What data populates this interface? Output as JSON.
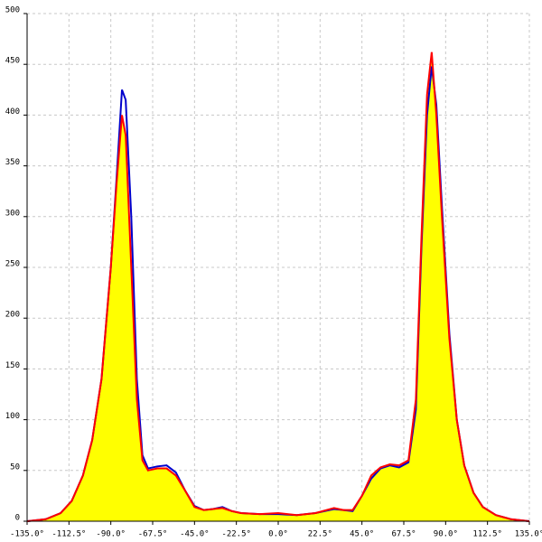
{
  "chart_data": {
    "type": "area",
    "x": [
      -135,
      -125,
      -117,
      -111,
      -105,
      -100,
      -95,
      -90,
      -87,
      -84,
      -82,
      -79,
      -76,
      -73,
      -70,
      -65,
      -60,
      -55,
      -50,
      -45,
      -40,
      -35,
      -30,
      -25,
      -20,
      -10,
      0,
      10,
      20,
      30,
      35,
      40,
      45,
      50,
      55,
      60,
      65,
      70,
      74,
      77,
      80,
      82.5,
      85,
      88,
      92,
      96,
      100,
      105,
      110,
      117,
      125,
      135
    ],
    "series": [
      {
        "color": "#0000cc",
        "values": [
          0,
          2,
          8,
          20,
          45,
          80,
          140,
          250,
          335,
          425,
          415,
          300,
          140,
          65,
          52,
          54,
          55,
          48,
          30,
          15,
          11,
          12,
          14,
          10,
          8,
          7,
          7,
          6,
          8,
          12,
          11,
          10,
          25,
          42,
          52,
          55,
          53,
          58,
          110,
          270,
          400,
          448,
          410,
          310,
          185,
          100,
          55,
          28,
          14,
          6,
          2,
          0
        ]
      },
      {
        "color": "#ff0000",
        "fill": "#ffff00",
        "values": [
          0,
          2,
          8,
          20,
          45,
          80,
          140,
          250,
          330,
          400,
          380,
          250,
          120,
          60,
          50,
          52,
          52,
          45,
          30,
          14,
          11,
          12,
          13,
          10,
          8,
          7,
          8,
          6,
          8,
          13,
          11,
          11,
          25,
          45,
          53,
          56,
          55,
          60,
          120,
          280,
          420,
          462,
          400,
          300,
          180,
          100,
          55,
          28,
          14,
          6,
          2,
          0
        ]
      }
    ],
    "xlim": [
      -135,
      135
    ],
    "ylim": [
      0,
      500
    ],
    "xticks": [
      {
        "value": -135,
        "label": "-135.0°"
      },
      {
        "value": -112.5,
        "label": "-112.5°"
      },
      {
        "value": -90,
        "label": "-90.0°"
      },
      {
        "value": -67.5,
        "label": "-67.5°"
      },
      {
        "value": -45,
        "label": "-45.0°"
      },
      {
        "value": -22.5,
        "label": "-22.5°"
      },
      {
        "value": 0,
        "label": "0.0°"
      },
      {
        "value": 22.5,
        "label": "22.5°"
      },
      {
        "value": 45,
        "label": "45.0°"
      },
      {
        "value": 67.5,
        "label": "67.5°"
      },
      {
        "value": 90,
        "label": "90.0°"
      },
      {
        "value": 112.5,
        "label": "112.5°"
      },
      {
        "value": 135,
        "label": "135.0°"
      }
    ],
    "yticks": [
      0,
      50,
      100,
      150,
      200,
      250,
      300,
      350,
      400,
      450,
      500
    ],
    "grid": true
  }
}
